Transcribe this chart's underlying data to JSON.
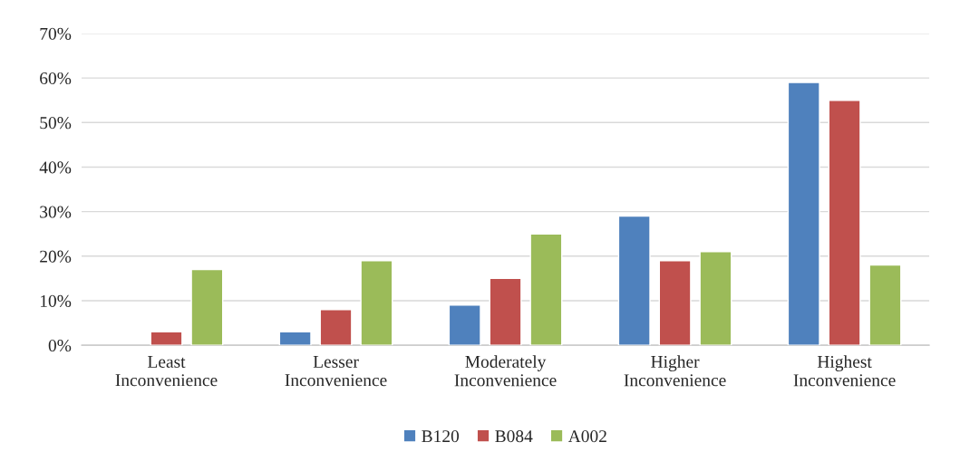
{
  "chart_data": {
    "type": "bar",
    "categories": [
      "Least\nInconvenience",
      "Lesser\nInconvenience",
      "Moderately\nInconvenience",
      "Higher\nInconvenience",
      "Highest\nInconvenience"
    ],
    "series": [
      {
        "name": "B120",
        "color": "#4f81bd",
        "values": [
          null,
          3,
          9,
          29,
          59
        ]
      },
      {
        "name": "B084",
        "color": "#c0504d",
        "values": [
          3,
          8,
          15,
          19,
          55
        ]
      },
      {
        "name": "A002",
        "color": "#9bbb59",
        "values": [
          17,
          19,
          25,
          21,
          18
        ]
      }
    ],
    "ylim": [
      0,
      70
    ],
    "yticks": [
      {
        "value": 0,
        "label": "0%"
      },
      {
        "value": 10,
        "label": "10%"
      },
      {
        "value": 20,
        "label": "20%"
      },
      {
        "value": 30,
        "label": "30%"
      },
      {
        "value": 40,
        "label": "40%"
      },
      {
        "value": 50,
        "label": "50%"
      },
      {
        "value": 60,
        "label": "60%"
      },
      {
        "value": 70,
        "label": "70%"
      }
    ],
    "grid": "y",
    "legend": "bottom"
  }
}
